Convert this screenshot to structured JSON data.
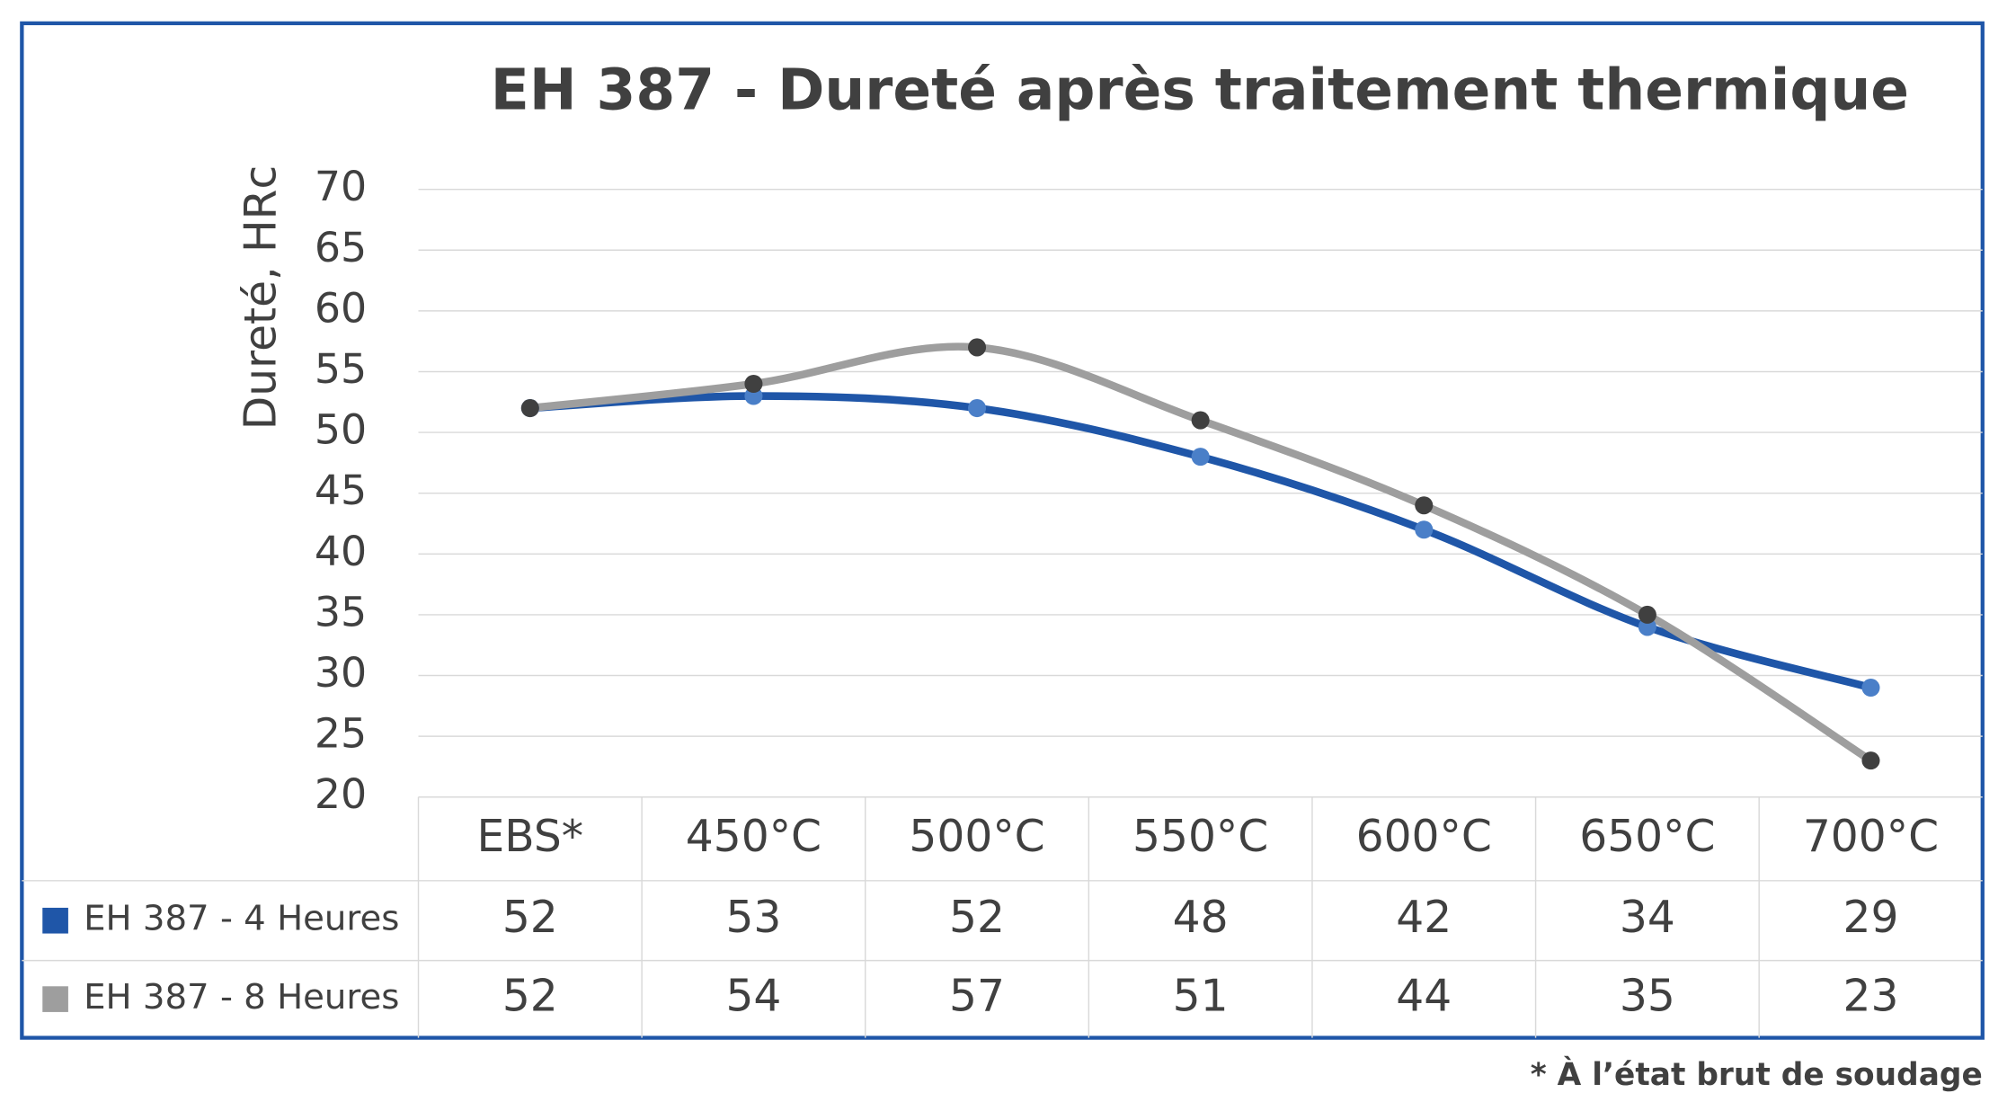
{
  "chart_data": {
    "type": "line",
    "title": "EH 387 - Dureté après traitement thermique",
    "y_label": "Dureté, HRc",
    "footnote": "* À l’état brut de soudage",
    "categories": [
      "EBS*",
      "450°C",
      "500°C",
      "550°C",
      "600°C",
      "650°C",
      "700°C"
    ],
    "series": [
      {
        "name": "EH 387 - 4 Heures",
        "color": "#1f56a8",
        "marker_color": "#4a7fc8",
        "values": [
          52,
          53,
          52,
          48,
          42,
          34,
          29
        ]
      },
      {
        "name": "EH 387 - 8 Heures",
        "color": "#9e9e9e",
        "marker_color": "#404040",
        "values": [
          52,
          54,
          57,
          51,
          44,
          35,
          23
        ]
      }
    ],
    "ylim": [
      20,
      70
    ],
    "yticks": [
      20,
      25,
      30,
      35,
      40,
      45,
      50,
      55,
      60,
      65,
      70
    ],
    "grid": true,
    "smooth": true
  }
}
